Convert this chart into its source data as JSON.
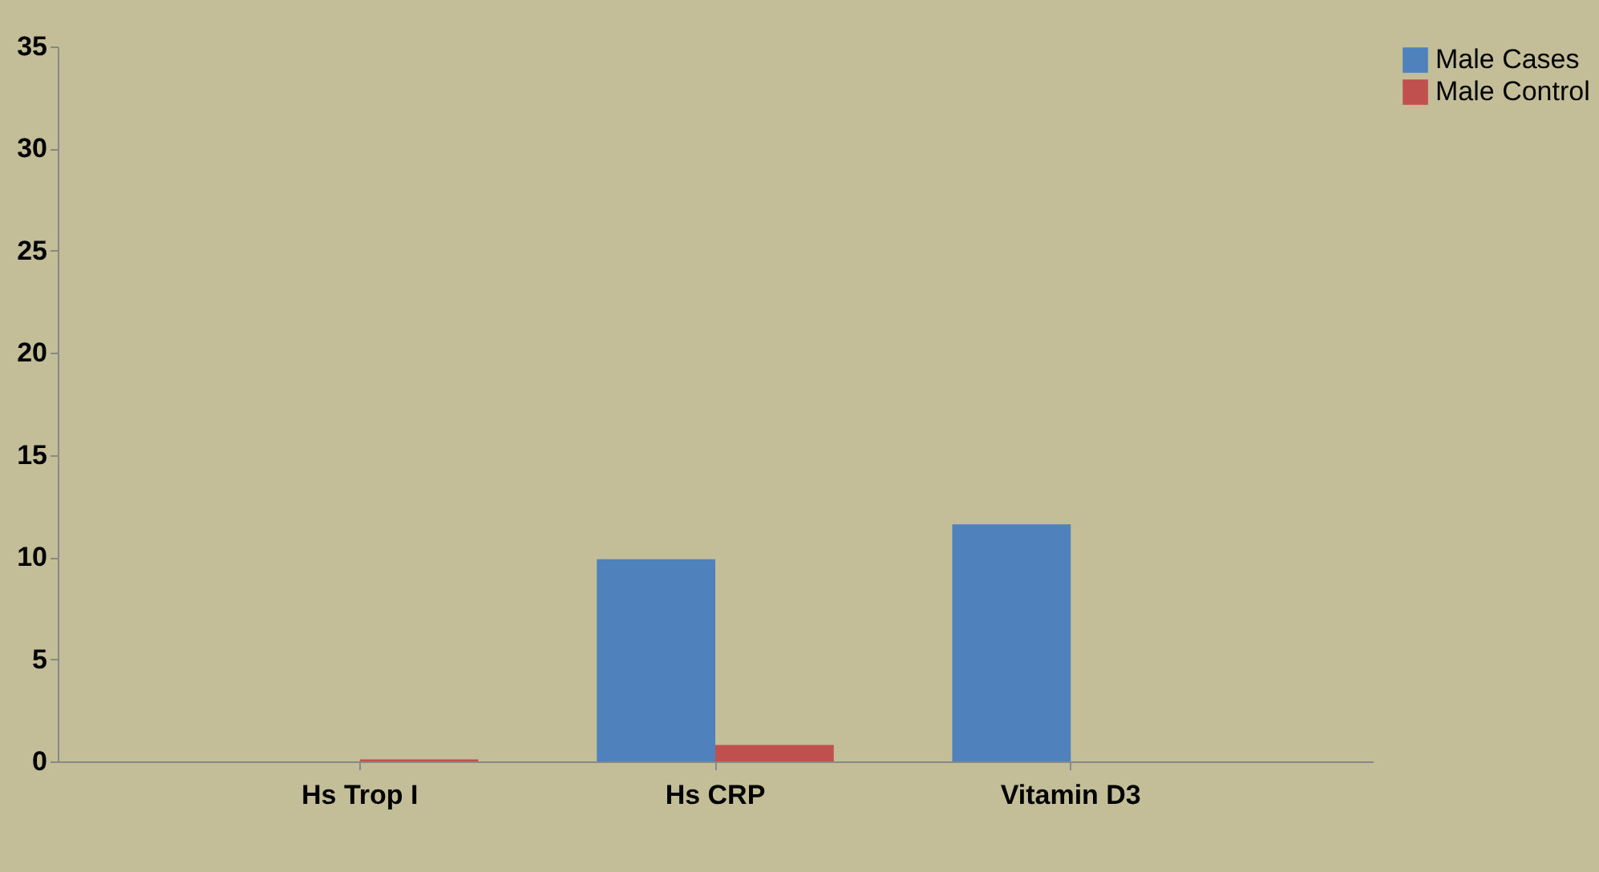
{
  "chart_data": {
    "type": "bar",
    "categories": [
      "Hs Trop I",
      "Hs CRP",
      "Vitamin D3"
    ],
    "series": [
      {
        "name": "Male Cases",
        "color": "#4f81bd",
        "values": [
          0,
          9.9,
          11.6
        ]
      },
      {
        "name": "Male Control",
        "color": "#c0504d",
        "values": [
          0.1,
          0.8,
          0
        ]
      }
    ],
    "ylim": [
      0,
      35
    ],
    "yticks": [
      0,
      5,
      10,
      15,
      20,
      25,
      30,
      35
    ],
    "grid": false,
    "legend": "right"
  }
}
